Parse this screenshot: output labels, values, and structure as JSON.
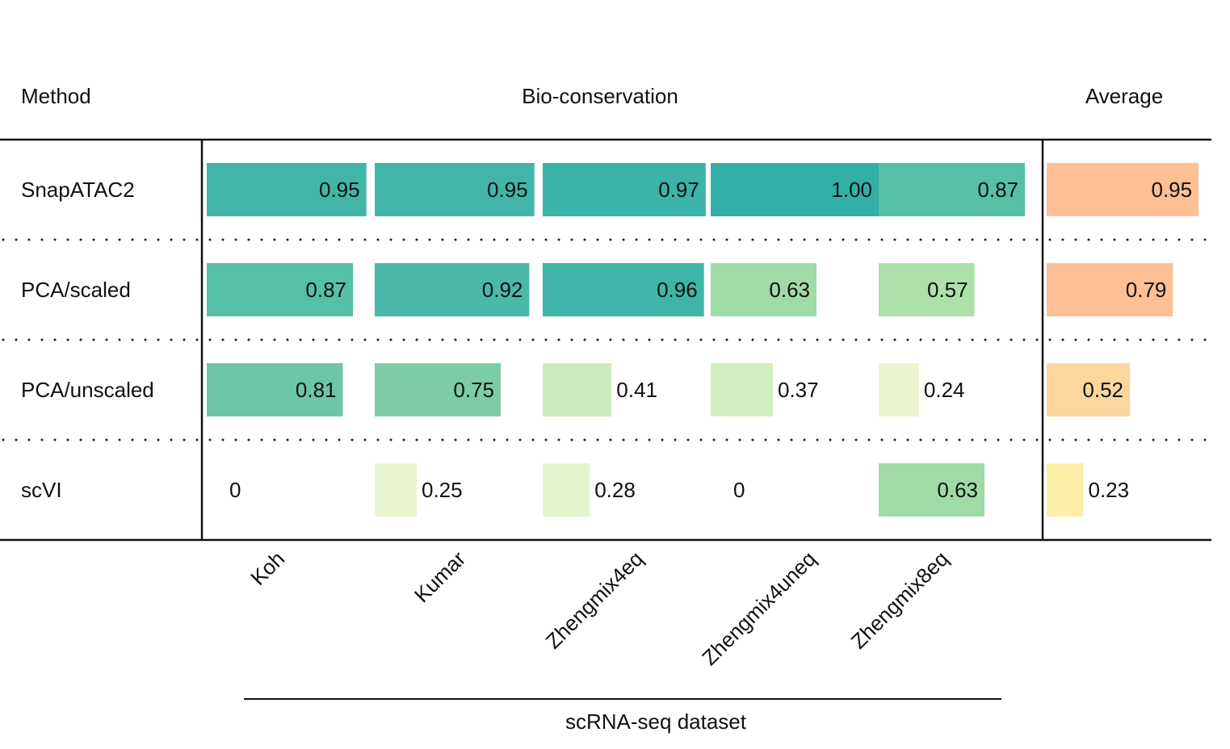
{
  "chart_data": {
    "type": "table",
    "headers": {
      "method": "Method",
      "group": "Bio-conservation",
      "average": "Average"
    },
    "columns": [
      "Koh",
      "Kumar",
      "Zhengmix4eq",
      "Zhengmix4uneq",
      "Zhengmix8eq"
    ],
    "xlabel": "scRNA-seq dataset",
    "rows": [
      {
        "method": "SnapATAC2",
        "values": [
          0.95,
          0.95,
          0.97,
          1.0,
          0.87
        ],
        "labels": [
          "0.95",
          "0.95",
          "0.97",
          "1.00",
          "0.87"
        ],
        "average": 0.95,
        "average_label": "0.95"
      },
      {
        "method": "PCA/scaled",
        "values": [
          0.87,
          0.92,
          0.96,
          0.63,
          0.57
        ],
        "labels": [
          "0.87",
          "0.92",
          "0.96",
          "0.63",
          "0.57"
        ],
        "average": 0.79,
        "average_label": "0.79"
      },
      {
        "method": "PCA/unscaled",
        "values": [
          0.81,
          0.75,
          0.41,
          0.37,
          0.24
        ],
        "labels": [
          "0.81",
          "0.75",
          "0.41",
          "0.37",
          "0.24"
        ],
        "average": 0.52,
        "average_label": "0.52"
      },
      {
        "method": "scVI",
        "values": [
          0,
          0.25,
          0.28,
          0,
          0.63
        ],
        "labels": [
          "0",
          "0.25",
          "0.28",
          "0",
          "0.63"
        ],
        "average": 0.23,
        "average_label": "0.23"
      }
    ],
    "value_range": [
      0,
      1
    ],
    "colors": {
      "dataset_low": "#f2f9d5",
      "dataset_mid": "#a8dea6",
      "dataset_high": "#32b0a8",
      "average_low": "#fdf0a8",
      "average_high": "#fdbf94"
    }
  }
}
